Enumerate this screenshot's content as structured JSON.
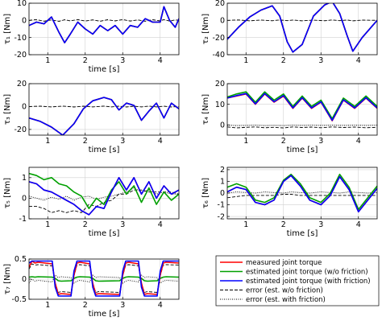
{
  "chart_data": [
    {
      "type": "line",
      "id": "tau1",
      "ylabel": "τ₁ [Nm]",
      "xlabel": "time [s]",
      "xlim": [
        0.5,
        4.5
      ],
      "ylim": [
        -20,
        10
      ],
      "xticks": [
        1,
        2,
        3,
        4
      ],
      "yticks": [
        -20,
        -10,
        0,
        10
      ],
      "x": [
        0.5,
        0.7,
        0.9,
        1.1,
        1.3,
        1.45,
        1.6,
        1.8,
        2.0,
        2.2,
        2.4,
        2.6,
        2.8,
        3.0,
        3.2,
        3.4,
        3.6,
        3.8,
        4.0,
        4.1,
        4.25,
        4.4,
        4.5
      ],
      "series": [
        {
          "name": "measured joint torque",
          "values": [
            -3,
            -1,
            -2,
            2,
            -7,
            -13,
            -8,
            -1,
            -5,
            -8,
            -3,
            -6,
            -3,
            -8,
            -3,
            -4,
            1,
            -1,
            -1,
            8,
            0,
            -4,
            1
          ]
        },
        {
          "name": "estimated joint torque (w/o friction)",
          "values": [
            -3,
            -1,
            -2,
            2,
            -7,
            -13,
            -8,
            -1,
            -5,
            -8,
            -3,
            -6,
            -3,
            -8,
            -3,
            -4,
            1,
            -1,
            -1,
            8,
            0,
            -4,
            1
          ]
        },
        {
          "name": "estimated joint torque (with friction)",
          "values": [
            -3,
            -1,
            -2,
            2,
            -7,
            -13,
            -8,
            -1,
            -5,
            -8,
            -3,
            -6,
            -3,
            -8,
            -3,
            -4,
            1,
            -1,
            -1,
            8,
            0,
            -4,
            1
          ]
        },
        {
          "name": "error (est. w/o friction)",
          "values": [
            0,
            0.5,
            -0.5,
            0.3,
            -0.6,
            0.4,
            -0.3,
            0.5,
            -0.4,
            0.3,
            -0.5,
            0.4,
            -0.3,
            0.5,
            -0.4,
            0.3,
            -0.5,
            0.4,
            -0.3,
            0.5,
            -0.4,
            0.3,
            0
          ]
        }
      ]
    },
    {
      "type": "line",
      "id": "tau2",
      "ylabel": "τ₂ [Nm]",
      "xlabel": "",
      "xlim": [
        0.5,
        4.5
      ],
      "ylim": [
        -40,
        20
      ],
      "xticks": [
        1,
        2,
        3,
        4
      ],
      "yticks": [
        -40,
        -20,
        0,
        20
      ],
      "x": [
        0.5,
        0.8,
        1.1,
        1.4,
        1.7,
        1.9,
        2.1,
        2.25,
        2.5,
        2.8,
        3.1,
        3.3,
        3.5,
        3.7,
        3.85,
        4.1,
        4.5
      ],
      "series": [
        {
          "name": "measured joint torque",
          "values": [
            -22,
            -8,
            4,
            12,
            17,
            5,
            -25,
            -37,
            -28,
            5,
            18,
            22,
            8,
            -18,
            -36,
            -20,
            0
          ]
        },
        {
          "name": "estimated joint torque (w/o friction)",
          "values": [
            -22,
            -8,
            4,
            12,
            17,
            5,
            -25,
            -37,
            -28,
            5,
            18,
            22,
            8,
            -18,
            -36,
            -20,
            0
          ]
        },
        {
          "name": "estimated joint torque (with friction)",
          "values": [
            -22,
            -8,
            4,
            12,
            17,
            5,
            -25,
            -37,
            -28,
            5,
            18,
            22,
            8,
            -18,
            -36,
            -20,
            0
          ]
        },
        {
          "name": "error (est. w/o friction)",
          "values": [
            0,
            0.5,
            -0.5,
            0.4,
            -0.4,
            0.5,
            -0.3,
            0.4,
            -0.5,
            0.3,
            -0.4,
            0.5,
            -0.3,
            0.4,
            -0.5,
            0.3,
            0
          ]
        }
      ]
    },
    {
      "type": "line",
      "id": "tau3",
      "ylabel": "τ₃ [Nm]",
      "xlabel": "time [s]",
      "xlim": [
        0.5,
        4.5
      ],
      "ylim": [
        -25,
        20
      ],
      "xticks": [
        1,
        2,
        3,
        4
      ],
      "yticks": [
        -20,
        0,
        20
      ],
      "x": [
        0.5,
        0.8,
        1.1,
        1.4,
        1.7,
        1.95,
        2.2,
        2.5,
        2.7,
        2.9,
        3.1,
        3.3,
        3.5,
        3.7,
        3.9,
        4.1,
        4.3,
        4.5
      ],
      "series": [
        {
          "name": "measured joint torque",
          "values": [
            -10,
            -13,
            -18,
            -25,
            -15,
            -2,
            5,
            8,
            6,
            -3,
            3,
            1,
            -12,
            -4,
            3,
            -10,
            3,
            -2
          ]
        },
        {
          "name": "estimated joint torque (w/o friction)",
          "values": [
            -10,
            -13,
            -18,
            -25,
            -15,
            -2,
            5,
            8,
            6,
            -3,
            3,
            1,
            -12,
            -4,
            3,
            -10,
            3,
            -2
          ]
        },
        {
          "name": "estimated joint torque (with friction)",
          "values": [
            -10,
            -13,
            -18,
            -25,
            -15,
            -2,
            5,
            8,
            6,
            -3,
            3,
            1,
            -12,
            -4,
            3,
            -10,
            3,
            -2
          ]
        },
        {
          "name": "error (est. w/o friction)",
          "values": [
            0,
            0.3,
            -0.3,
            0.4,
            -0.4,
            0.3,
            -0.3,
            0.4,
            -0.3,
            0.3,
            -0.4,
            0.3,
            -0.3,
            0.4,
            -0.3,
            0.3,
            -0.4,
            0
          ]
        }
      ]
    },
    {
      "type": "line",
      "id": "tau4",
      "ylabel": "τ₄ [Nm]",
      "xlabel": "time [s]",
      "xlim": [
        0.5,
        4.5
      ],
      "ylim": [
        -5,
        20
      ],
      "xticks": [
        1,
        2,
        3,
        4
      ],
      "yticks": [
        0,
        10,
        20
      ],
      "x": [
        0.5,
        0.75,
        1.0,
        1.25,
        1.5,
        1.75,
        2.0,
        2.25,
        2.5,
        2.75,
        3.0,
        3.3,
        3.6,
        3.9,
        4.2,
        4.5
      ],
      "series": [
        {
          "name": "measured joint torque",
          "values": [
            13,
            14,
            15,
            10,
            15,
            11,
            14,
            8,
            13,
            8,
            11,
            2,
            12,
            8,
            13,
            8
          ]
        },
        {
          "name": "estimated joint torque (w/o friction)",
          "values": [
            13.5,
            15,
            16,
            11,
            16,
            12,
            15,
            9,
            14,
            9,
            12,
            3,
            13,
            9,
            14,
            9
          ]
        },
        {
          "name": "estimated joint torque (with friction)",
          "values": [
            13,
            14.2,
            15.2,
            10.2,
            15.2,
            11.2,
            14.2,
            8.2,
            13.2,
            8.2,
            11.2,
            2.2,
            12.2,
            8.2,
            13.2,
            8.2
          ]
        },
        {
          "name": "error (est. w/o friction)",
          "values": [
            -1,
            -1.5,
            -1.2,
            -1,
            -1.4,
            -1.2,
            -1.5,
            -1,
            -1.3,
            -1.1,
            -1.4,
            -1,
            -1.3,
            -1.1,
            -1.4,
            -1.2
          ]
        },
        {
          "name": "error (est. with friction)",
          "values": [
            -0.2,
            -0.4,
            -0.3,
            -0.2,
            -0.4,
            -0.3,
            -0.4,
            -0.2,
            -0.3,
            -0.2,
            -0.3,
            -0.2,
            -0.3,
            -0.2,
            -0.3,
            -0.2
          ]
        }
      ]
    },
    {
      "type": "line",
      "id": "tau5",
      "ylabel": "τ₅ [Nm]",
      "xlabel": "time [s]",
      "xlim": [
        0.5,
        4.5
      ],
      "ylim": [
        -1,
        1.5
      ],
      "xticks": [
        1,
        2,
        3,
        4
      ],
      "yticks": [
        -1,
        0,
        1
      ],
      "x": [
        0.5,
        0.7,
        0.9,
        1.1,
        1.3,
        1.5,
        1.7,
        1.9,
        2.1,
        2.3,
        2.5,
        2.7,
        2.9,
        3.1,
        3.3,
        3.5,
        3.7,
        3.9,
        4.1,
        4.3,
        4.5
      ],
      "series": [
        {
          "name": "measured joint torque",
          "values": [
            0.8,
            0.7,
            0.4,
            0.3,
            0.1,
            -0.1,
            -0.3,
            -0.6,
            -0.8,
            -0.4,
            -0.5,
            0.3,
            1.0,
            0.4,
            1.0,
            0.2,
            0.8,
            0.0,
            0.6,
            0.2,
            0.4
          ]
        },
        {
          "name": "estimated joint torque (w/o friction)",
          "values": [
            1.2,
            1.1,
            0.9,
            1.0,
            0.7,
            0.6,
            0.3,
            0.1,
            -0.5,
            0.0,
            -0.3,
            0.4,
            0.8,
            0.2,
            0.6,
            -0.2,
            0.5,
            -0.3,
            0.3,
            -0.1,
            0.2
          ]
        },
        {
          "name": "estimated joint torque (with friction)",
          "values": [
            0.8,
            0.7,
            0.4,
            0.3,
            0.1,
            -0.1,
            -0.3,
            -0.6,
            -0.8,
            -0.4,
            -0.5,
            0.3,
            1.0,
            0.4,
            1.0,
            0.2,
            0.8,
            0.0,
            0.6,
            0.2,
            0.4
          ]
        },
        {
          "name": "error (est. w/o friction)",
          "values": [
            -0.4,
            -0.4,
            -0.5,
            -0.7,
            -0.6,
            -0.7,
            -0.6,
            -0.7,
            -0.3,
            -0.4,
            -0.2,
            -0.1,
            0.2,
            0.2,
            0.4,
            0.4,
            0.3,
            0.3,
            0.3,
            0.3,
            0.2
          ]
        },
        {
          "name": "error (est. with friction)",
          "values": [
            0.1,
            0.0,
            -0.1,
            0.05,
            -0.05,
            0.1,
            -0.1,
            0.05,
            0.1,
            -0.05,
            0.05,
            0.1,
            0.2,
            0.3,
            0.5,
            0.3,
            0.4,
            0.2,
            0.3,
            0.2,
            0.2
          ]
        }
      ]
    },
    {
      "type": "line",
      "id": "tau6",
      "ylabel": "τ₆ [Nm]",
      "xlabel": "time [s]",
      "xlim": [
        0.5,
        4.5
      ],
      "ylim": [
        -2.2,
        2.2
      ],
      "xticks": [
        1,
        2,
        3,
        4
      ],
      "yticks": [
        -2,
        -1,
        0,
        1,
        2
      ],
      "x": [
        0.5,
        0.75,
        1.0,
        1.25,
        1.5,
        1.75,
        2.0,
        2.2,
        2.45,
        2.7,
        3.0,
        3.25,
        3.5,
        3.75,
        4.0,
        4.25,
        4.5
      ],
      "series": [
        {
          "name": "measured joint torque",
          "values": [
            0.1,
            0.5,
            0.3,
            -0.8,
            -1.0,
            -0.6,
            1.0,
            1.5,
            0.6,
            -0.6,
            -1.0,
            -0.2,
            1.4,
            0.3,
            -1.6,
            -0.6,
            0.4
          ]
        },
        {
          "name": "estimated joint torque (w/o friction)",
          "values": [
            0.5,
            0.8,
            0.5,
            -0.6,
            -0.8,
            -0.4,
            1.1,
            1.6,
            0.8,
            -0.4,
            -0.8,
            0.0,
            1.6,
            0.5,
            -1.4,
            -0.4,
            0.6
          ]
        },
        {
          "name": "estimated joint torque (with friction)",
          "values": [
            0.1,
            0.5,
            0.3,
            -0.8,
            -1.0,
            -0.6,
            1.0,
            1.5,
            0.6,
            -0.6,
            -1.0,
            -0.2,
            1.4,
            0.3,
            -1.6,
            -0.6,
            0.4
          ]
        },
        {
          "name": "error (est. w/o friction)",
          "values": [
            -0.4,
            -0.3,
            -0.2,
            -0.2,
            -0.2,
            -0.2,
            -0.1,
            -0.1,
            -0.2,
            -0.2,
            -0.2,
            -0.2,
            -0.2,
            -0.2,
            -0.2,
            -0.2,
            -0.2
          ]
        },
        {
          "name": "error (est. with friction)",
          "values": [
            0,
            0.1,
            0.05,
            0,
            0.1,
            0.05,
            0,
            0.1,
            0.05,
            0,
            0.1,
            0.05,
            0,
            0.1,
            0.05,
            0,
            0.05
          ]
        }
      ]
    },
    {
      "type": "line",
      "id": "tau7",
      "ylabel": "τ₇ [Nm]",
      "xlabel": "time [s]",
      "xlim": [
        0.5,
        4.5
      ],
      "ylim": [
        -0.5,
        0.5
      ],
      "xticks": [
        1,
        2,
        3,
        4
      ],
      "yticks": [
        -0.5,
        0,
        0.5
      ],
      "x": [
        0.5,
        0.58,
        0.66,
        0.74,
        1.12,
        1.2,
        1.28,
        1.36,
        1.62,
        1.7,
        1.78,
        1.86,
        2.12,
        2.2,
        2.28,
        2.36,
        2.92,
        3.0,
        3.08,
        3.16,
        3.42,
        3.5,
        3.58,
        3.66,
        3.92,
        4.0,
        4.08,
        4.16,
        4.5
      ],
      "series": [
        {
          "name": "measured joint torque",
          "values": [
            0.3,
            0.45,
            0.4,
            0.42,
            0.38,
            -0.1,
            -0.38,
            -0.36,
            -0.38,
            0.1,
            0.4,
            0.42,
            0.38,
            -0.1,
            -0.38,
            -0.36,
            -0.38,
            0.1,
            0.4,
            0.42,
            0.38,
            -0.1,
            -0.38,
            -0.36,
            -0.38,
            0.1,
            0.4,
            0.42,
            0.4
          ]
        },
        {
          "name": "estimated joint torque (w/o friction)",
          "values": [
            0.05,
            0.06,
            0.05,
            0.06,
            0.05,
            0.02,
            -0.04,
            -0.05,
            -0.04,
            0.02,
            0.05,
            0.06,
            0.05,
            0.02,
            -0.04,
            -0.05,
            -0.04,
            0.02,
            0.05,
            0.06,
            0.05,
            0.02,
            -0.04,
            -0.05,
            -0.04,
            0.02,
            0.05,
            0.06,
            0.05
          ]
        },
        {
          "name": "estimated joint torque (with friction)",
          "values": [
            0.4,
            0.45,
            0.45,
            0.45,
            0.45,
            -0.2,
            -0.42,
            -0.42,
            -0.42,
            0.2,
            0.45,
            0.45,
            0.45,
            -0.2,
            -0.42,
            -0.42,
            -0.42,
            0.2,
            0.45,
            0.45,
            0.45,
            -0.2,
            -0.42,
            -0.42,
            -0.42,
            0.2,
            0.45,
            0.45,
            0.45
          ]
        },
        {
          "name": "error (est. w/o friction)",
          "values": [
            0.25,
            0.38,
            0.35,
            0.36,
            0.33,
            -0.1,
            -0.33,
            -0.31,
            -0.33,
            0.08,
            0.35,
            0.36,
            0.33,
            -0.1,
            -0.33,
            -0.31,
            -0.33,
            0.08,
            0.35,
            0.36,
            0.33,
            -0.1,
            -0.33,
            -0.31,
            -0.33,
            0.08,
            0.35,
            0.36,
            0.35
          ]
        },
        {
          "name": "error (est. with friction)",
          "values": [
            -0.1,
            0.0,
            -0.05,
            -0.03,
            -0.07,
            0.1,
            0.04,
            0.06,
            0.04,
            -0.1,
            -0.05,
            -0.03,
            -0.07,
            0.1,
            0.04,
            0.06,
            0.04,
            -0.1,
            -0.05,
            -0.03,
            -0.07,
            0.1,
            0.04,
            0.06,
            0.04,
            -0.1,
            -0.05,
            -0.03,
            -0.05
          ]
        }
      ]
    }
  ],
  "legend": {
    "placement": "bottom-right",
    "entries": [
      {
        "label": "measured joint torque",
        "color": "#ff0000",
        "style": "solid"
      },
      {
        "label": "estimated joint torque (w/o friction)",
        "color": "#00a000",
        "style": "solid"
      },
      {
        "label": "estimated joint torque (with friction)",
        "color": "#0000ff",
        "style": "solid"
      },
      {
        "label": "error (est. w/o friction)",
        "color": "#000000",
        "style": "dashed"
      },
      {
        "label": "error (est. with friction)",
        "color": "#000000",
        "style": "dotted"
      }
    ]
  },
  "style": {
    "grid": true,
    "grid_color": "#d0d0d0"
  }
}
